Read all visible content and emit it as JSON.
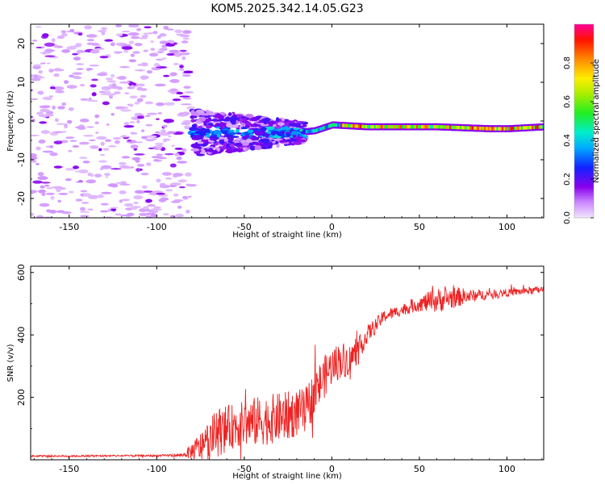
{
  "figure_title": "KOM5.2025.342.14.05.G23",
  "chart_data": [
    {
      "type": "heatmap",
      "title": "KOM5.2025.342.14.05.G23",
      "xlabel": "Height of straight line (km)",
      "ylabel": "Frequency (Hz)",
      "xlim": [
        -172,
        121
      ],
      "ylim": [
        -25,
        25
      ],
      "xticks": [
        -150,
        -100,
        -50,
        0,
        50,
        100
      ],
      "yticks": [
        -20,
        -10,
        0,
        10,
        20
      ],
      "colorbar": {
        "label": "Normalized spectral amplitude",
        "range": [
          0,
          1
        ],
        "ticks": [
          0.0,
          0.2,
          0.4,
          0.6,
          0.8
        ]
      },
      "regions": [
        {
          "name": "noise",
          "x_range": [
            -172,
            -80
          ],
          "freq_range": [
            -25,
            25
          ],
          "amplitude": 0.05
        },
        {
          "name": "transition",
          "x_range": [
            -80,
            -15
          ],
          "freq_center": -2,
          "freq_spread": 6,
          "amplitude": 0.15
        },
        {
          "name": "ridge",
          "x_range": [
            -15,
            121
          ],
          "freq_center": -1.5,
          "amplitude": 0.9
        }
      ],
      "ridge_points": [
        {
          "x": -40,
          "freq": -3
        },
        {
          "x": -20,
          "freq": -3
        },
        {
          "x": -10,
          "freq": -2.5
        },
        {
          "x": 0,
          "freq": -1
        },
        {
          "x": 20,
          "freq": -1.5
        },
        {
          "x": 60,
          "freq": -1.5
        },
        {
          "x": 90,
          "freq": -2
        },
        {
          "x": 100,
          "freq": -2
        },
        {
          "x": 121,
          "freq": -1.5
        }
      ]
    },
    {
      "type": "line",
      "xlabel": "Height of straight line (km)",
      "ylabel": "SNR (v/v)",
      "xlim": [
        -172,
        121
      ],
      "ylim": [
        0,
        620
      ],
      "xticks": [
        -150,
        -100,
        -50,
        0,
        50,
        100
      ],
      "yticks": [
        200,
        400,
        600
      ],
      "series": [
        {
          "name": "SNR",
          "color": "#ee2222",
          "x": [
            -172,
            -150,
            -120,
            -100,
            -85,
            -75,
            -65,
            -55,
            -45,
            -35,
            -25,
            -15,
            -10,
            -5,
            0,
            5,
            10,
            15,
            20,
            25,
            30,
            40,
            50,
            60,
            70,
            80,
            90,
            100,
            110,
            121
          ],
          "values": [
            12,
            12,
            13,
            13,
            15,
            40,
            90,
            110,
            120,
            130,
            140,
            160,
            210,
            260,
            300,
            320,
            320,
            350,
            400,
            430,
            460,
            480,
            500,
            510,
            520,
            525,
            530,
            535,
            540,
            545
          ],
          "noise": [
            3,
            3,
            3,
            3,
            5,
            50,
            80,
            70,
            80,
            80,
            80,
            70,
            80,
            70,
            60,
            60,
            50,
            40,
            30,
            25,
            20,
            18,
            25,
            40,
            35,
            20,
            15,
            12,
            12,
            12
          ]
        }
      ]
    }
  ]
}
